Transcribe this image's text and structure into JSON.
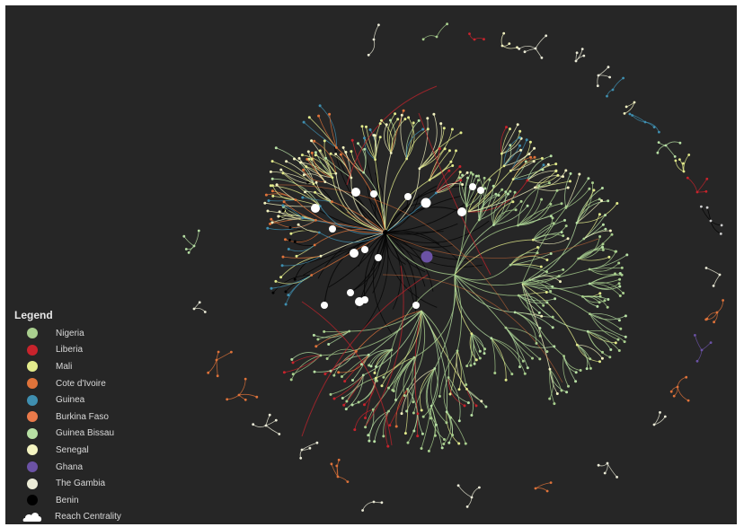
{
  "legend": {
    "title": "Legend",
    "items": [
      {
        "label": "Nigeria",
        "color": "#a9cf8e"
      },
      {
        "label": "Liberia",
        "color": "#c8232c"
      },
      {
        "label": "Mali",
        "color": "#e3ec8c"
      },
      {
        "label": "Cote d'Ivoire",
        "color": "#e0733a"
      },
      {
        "label": "Guinea",
        "color": "#3f8fb0"
      },
      {
        "label": "Burkina Faso",
        "color": "#ea7a4a"
      },
      {
        "label": "Guinea Bissau",
        "color": "#b7e0a4"
      },
      {
        "label": "Senegal",
        "color": "#f3f3c0"
      },
      {
        "label": "Ghana",
        "color": "#6b52a5"
      },
      {
        "label": "The Gambia",
        "color": "#ececd8"
      },
      {
        "label": "Benin",
        "color": "#000000"
      }
    ],
    "reach_label": "Reach Centrality",
    "reach_icon": "white-cloud-blob-icon"
  },
  "colors": {
    "background": "#262626",
    "hub": "#ffffff"
  }
}
